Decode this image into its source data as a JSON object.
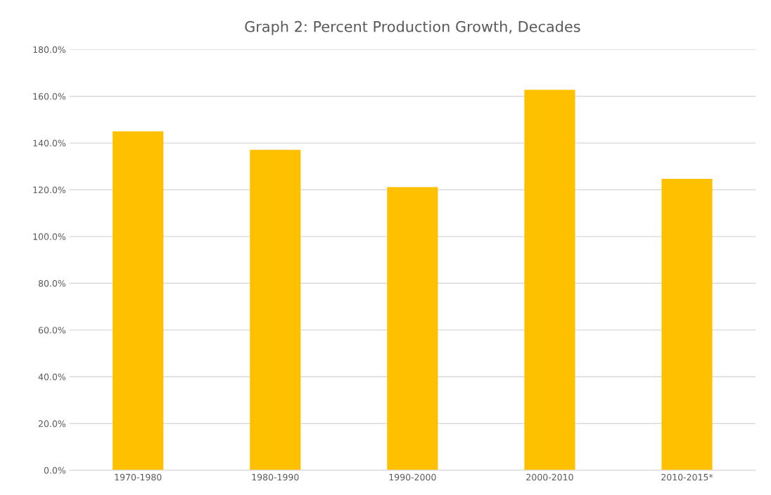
{
  "chart_data": {
    "type": "bar",
    "title": "Graph 2: Percent Production Growth, Decades",
    "categories": [
      "1970-1980",
      "1980-1990",
      "1990-2000",
      "2000-2010",
      "2010-2015*"
    ],
    "values": [
      145.0,
      137.1,
      121.1,
      162.8,
      124.7
    ],
    "color": "#ffc000",
    "ylim": [
      0,
      180
    ],
    "yticks": [
      {
        "value": 0,
        "label": "0.0%"
      },
      {
        "value": 20,
        "label": "20.0%"
      },
      {
        "value": 40,
        "label": "40.0%"
      },
      {
        "value": 60,
        "label": "60.0%"
      },
      {
        "value": 80,
        "label": "80.0%"
      },
      {
        "value": 100,
        "label": "100.0%"
      },
      {
        "value": 120,
        "label": "120.0%"
      },
      {
        "value": 140,
        "label": "140.0%"
      },
      {
        "value": 160,
        "label": "160.0%"
      },
      {
        "value": 180,
        "label": "180.0%"
      }
    ],
    "grid": "y"
  }
}
